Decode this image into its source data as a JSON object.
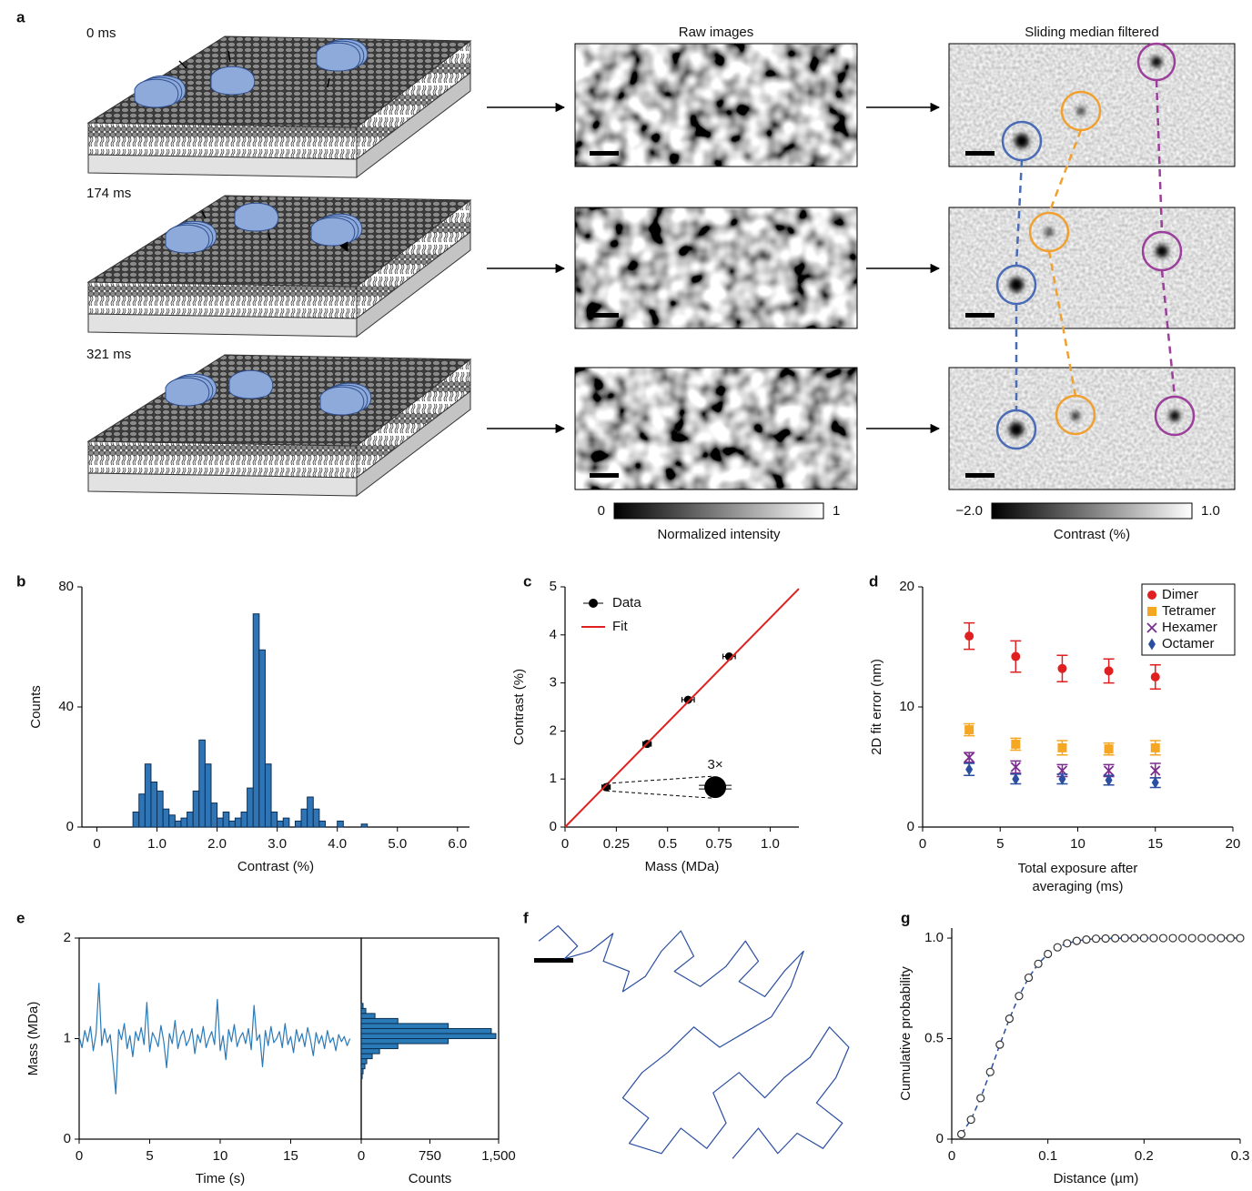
{
  "panel_a": {
    "label": "a",
    "times": [
      "0 ms",
      "174 ms",
      "321 ms"
    ],
    "raw_title": "Raw images",
    "filtered_title": "Sliding median filtered",
    "colorbars": [
      {
        "ticks": [
          0,
          1
        ],
        "label": "Normalized intensity"
      },
      {
        "ticks": [
          {
            "value": -2,
            "label": "−2.0"
          },
          {
            "value": 1,
            "label": "1.0"
          }
        ],
        "label": "Contrast (%)"
      }
    ]
  },
  "chart_data": [
    {
      "label": "b",
      "type": "histogram",
      "color": "#2f75b5",
      "bins": [
        0.6,
        0.7,
        0.8,
        0.9,
        1.0,
        1.1,
        1.2,
        1.3,
        1.4,
        1.5,
        1.6,
        1.7,
        1.8,
        1.9,
        2.0,
        2.1,
        2.2,
        2.3,
        2.4,
        2.5,
        2.6,
        2.7,
        2.8,
        2.9,
        3.0,
        3.1,
        3.2,
        3.3,
        3.4,
        3.5,
        3.6,
        3.7,
        3.8,
        3.9,
        4.0,
        4.1,
        4.2,
        4.3,
        4.4,
        4.5
      ],
      "values": [
        5,
        11,
        21,
        15,
        12,
        6,
        4,
        2,
        3,
        5,
        12,
        29,
        21,
        8,
        3,
        5,
        2,
        3,
        5,
        13,
        71,
        59,
        21,
        5,
        2,
        3,
        0,
        2,
        6,
        10,
        6,
        2,
        0,
        0,
        2,
        0,
        0,
        0,
        1
      ],
      "xlim": [
        -0.25,
        6.2
      ],
      "ylim": [
        0,
        80
      ],
      "xticks": [
        0,
        {
          "value": 1,
          "label": "1.0"
        },
        {
          "value": 2,
          "label": "2.0"
        },
        {
          "value": 3,
          "label": "3.0"
        },
        {
          "value": 4,
          "label": "4.0"
        },
        {
          "value": 5,
          "label": "5.0"
        },
        {
          "value": 6,
          "label": "6.0"
        }
      ],
      "yticks": [
        0,
        40,
        80
      ],
      "xlabel": "Contrast (%)",
      "ylabel": "Counts"
    },
    {
      "label": "c",
      "type": "scatter",
      "legend": "upper left",
      "inset_label": "3×",
      "series": [
        {
          "name": "Data",
          "color": "#000000",
          "marker": "circle",
          "x": [
            0.2,
            0.4,
            0.6,
            0.8
          ],
          "values": [
            0.83,
            1.73,
            2.65,
            3.55
          ],
          "xerr": [
            0.02,
            0.02,
            0.03,
            0.03
          ]
        },
        {
          "name": "Fit",
          "color": "#e02020",
          "type": "line",
          "x": [
            0,
            1.14
          ],
          "values": [
            0,
            4.96
          ]
        }
      ],
      "xlim": [
        0,
        1.14
      ],
      "ylim": [
        0,
        5
      ],
      "xticks": [
        0,
        0.25,
        0.5,
        0.75,
        {
          "value": 1,
          "label": "1.0"
        }
      ],
      "yticks": [
        0,
        1,
        2,
        3,
        4,
        5
      ],
      "xlabel": "Mass (MDa)",
      "ylabel": "Contrast (%)"
    },
    {
      "label": "d",
      "type": "scatter",
      "legend": "upper right",
      "series": [
        {
          "name": "Dimer",
          "color": "#e02020",
          "marker": "circle",
          "x": [
            3,
            6,
            9,
            12,
            15
          ],
          "values": [
            15.9,
            14.2,
            13.2,
            13.0,
            12.5
          ],
          "yerr": [
            1.1,
            1.3,
            1.1,
            1.0,
            1.0
          ]
        },
        {
          "name": "Tetramer",
          "color": "#f5a623",
          "marker": "square",
          "x": [
            3,
            6,
            9,
            12,
            15
          ],
          "values": [
            8.1,
            6.9,
            6.6,
            6.5,
            6.6
          ],
          "yerr": [
            0.5,
            0.5,
            0.6,
            0.5,
            0.6
          ]
        },
        {
          "name": "Hexamer",
          "color": "#7b2d8e",
          "marker": "x",
          "x": [
            3,
            6,
            9,
            12,
            15
          ],
          "values": [
            5.8,
            5.0,
            4.7,
            4.7,
            4.7
          ],
          "yerr": [
            0.4,
            0.5,
            0.5,
            0.5,
            0.6
          ]
        },
        {
          "name": "Octamer",
          "color": "#2a4ea0",
          "marker": "diamond",
          "x": [
            3,
            6,
            9,
            12,
            15
          ],
          "values": [
            4.8,
            4.0,
            4.0,
            3.9,
            3.7
          ],
          "yerr": [
            0.5,
            0.4,
            0.4,
            0.4,
            0.4
          ]
        }
      ],
      "xlim": [
        0,
        20
      ],
      "ylim": [
        0,
        20
      ],
      "xticks": [
        0,
        5,
        10,
        15,
        20
      ],
      "yticks": [
        0,
        10,
        20
      ],
      "xlabel": [
        "Total exposure after",
        "averaging (ms)"
      ],
      "ylabel": "2D fit error (nm)"
    },
    {
      "label": "e",
      "type": "line",
      "color": "#2a7ab8",
      "x": [
        0,
        0.2,
        0.4,
        0.6,
        0.8,
        1,
        1.2,
        1.4,
        1.6,
        1.8,
        2,
        2.2,
        2.4,
        2.6,
        2.8,
        3,
        3.2,
        3.4,
        3.6,
        3.8,
        4,
        4.2,
        4.4,
        4.6,
        4.8,
        5,
        5.2,
        5.4,
        5.6,
        5.8,
        6,
        6.2,
        6.4,
        6.6,
        6.8,
        7,
        7.2,
        7.4,
        7.6,
        7.8,
        8,
        8.2,
        8.4,
        8.6,
        8.8,
        9,
        9.2,
        9.4,
        9.6,
        9.8,
        10,
        10.2,
        10.4,
        10.6,
        10.8,
        11,
        11.2,
        11.4,
        11.6,
        11.8,
        12,
        12.2,
        12.4,
        12.6,
        12.8,
        13,
        13.2,
        13.4,
        13.6,
        13.8,
        14,
        14.2,
        14.4,
        14.6,
        14.8,
        15,
        15.2,
        15.4,
        15.6,
        15.8,
        16,
        16.2,
        16.4,
        16.6,
        16.8,
        17,
        17.2,
        17.4,
        17.6,
        17.8,
        18,
        18.2,
        18.4,
        18.6,
        18.8,
        19,
        19.2
      ],
      "values": [
        1.02,
        0.91,
        1.08,
        0.97,
        1.12,
        0.88,
        1.05,
        1.55,
        0.93,
        1.1,
        0.96,
        1.04,
        0.76,
        0.45,
        1.09,
        0.99,
        1.15,
        0.9,
        1.03,
        0.82,
        1.07,
        0.98,
        1.11,
        0.94,
        1.36,
        0.87,
        1.06,
        1.0,
        0.92,
        1.13,
        0.97,
        0.71,
        1.05,
        0.95,
        1.18,
        0.9,
        1.02,
        1.08,
        0.93,
        0.99,
        1.1,
        0.85,
        1.04,
        0.96,
        1.12,
        0.91,
        1.0,
        1.07,
        0.94,
        1.39,
        0.88,
        1.03,
        0.79,
        1.09,
        0.97,
        1.14,
        0.92,
        1.01,
        1.06,
        0.95,
        1.1,
        0.89,
        1.33,
        0.98,
        1.04,
        0.72,
        1.08,
        0.93,
        1.12,
        0.96,
        1.0,
        1.07,
        0.91,
        1.15,
        0.94,
        1.02,
        0.86,
        1.09,
        0.97,
        1.05,
        0.92,
        1.11,
        0.99,
        0.83,
        1.06,
        0.95,
        1.03,
        0.9,
        1.08,
        0.96,
        1.01,
        0.88,
        1.04,
        0.97,
        1.02,
        0.93,
        1.0
      ],
      "xlim": [
        0,
        20
      ],
      "ylim": [
        0,
        2
      ],
      "xticks": [
        0,
        5,
        10,
        15
      ],
      "yticks": [
        0,
        1,
        2
      ],
      "xlabel": "Time (s)",
      "ylabel": "Mass (MDa)"
    },
    {
      "type": "histogram",
      "orientation": "horizontal",
      "color": "#2a7ab8",
      "bins": [
        0.6,
        0.65,
        0.7,
        0.75,
        0.8,
        0.85,
        0.9,
        0.95,
        1,
        1.05,
        1.1,
        1.15,
        1.2,
        1.25,
        1.3,
        1.35
      ],
      "values": [
        10,
        20,
        40,
        60,
        120,
        200,
        400,
        950,
        1470,
        1420,
        950,
        400,
        150,
        50,
        20
      ],
      "xlim": [
        0,
        1500
      ],
      "ylim": [
        0,
        2
      ],
      "xticks": [
        0,
        750,
        {
          "value": 1500,
          "label": "1,500"
        }
      ],
      "xlabel": "Counts"
    },
    {
      "label": "f",
      "type": "line",
      "color": "#2a4ea0",
      "x": [
        2,
        8,
        14,
        10,
        18,
        25,
        22,
        30,
        28,
        35,
        40,
        46,
        50,
        44,
        52,
        60,
        66,
        70,
        64,
        72,
        78,
        84,
        80,
        74,
        66,
        58,
        50,
        42,
        34,
        28,
        36,
        30,
        40,
        46,
        54,
        60,
        56,
        64,
        72,
        78,
        86,
        92,
        98,
        94,
        88,
        96,
        90,
        82,
        76,
        70,
        62
      ],
      "values": [
        92,
        98,
        90,
        85,
        88,
        95,
        84,
        80,
        72,
        78,
        88,
        96,
        86,
        80,
        74,
        82,
        92,
        84,
        76,
        70,
        80,
        88,
        74,
        62,
        56,
        50,
        58,
        48,
        40,
        30,
        22,
        12,
        8,
        18,
        10,
        20,
        32,
        40,
        30,
        38,
        46,
        58,
        50,
        38,
        28,
        20,
        10,
        16,
        8,
        18,
        6
      ],
      "xlim": [
        0,
        100
      ],
      "ylim": [
        0,
        100
      ]
    },
    {
      "label": "g",
      "type": "line",
      "color": "#2a4ea0",
      "linestyle": "dashed",
      "marker": "circle",
      "x": [
        0.01,
        0.02,
        0.03,
        0.04,
        0.05,
        0.06,
        0.07,
        0.08,
        0.09,
        0.1,
        0.11,
        0.12,
        0.13,
        0.14,
        0.15,
        0.16,
        0.17,
        0.18,
        0.19,
        0.2,
        0.21,
        0.22,
        0.23,
        0.24,
        0.25,
        0.26,
        0.27,
        0.28,
        0.29,
        0.3
      ],
      "values": [
        0.025,
        0.097,
        0.204,
        0.334,
        0.47,
        0.599,
        0.712,
        0.803,
        0.872,
        0.921,
        0.954,
        0.974,
        0.986,
        0.993,
        0.997,
        0.998,
        0.999,
        1,
        1,
        1,
        1,
        1,
        1,
        1,
        1,
        1,
        1,
        1,
        1,
        1
      ],
      "xlim": [
        0,
        0.3
      ],
      "ylim": [
        0,
        1.05
      ],
      "xticks": [
        0,
        0.1,
        0.2,
        0.3
      ],
      "yticks": [
        0,
        0.5,
        {
          "value": 1,
          "label": "1.0"
        }
      ],
      "xlabel": "Distance (µm)",
      "ylabel": "Cumulative probability"
    }
  ]
}
